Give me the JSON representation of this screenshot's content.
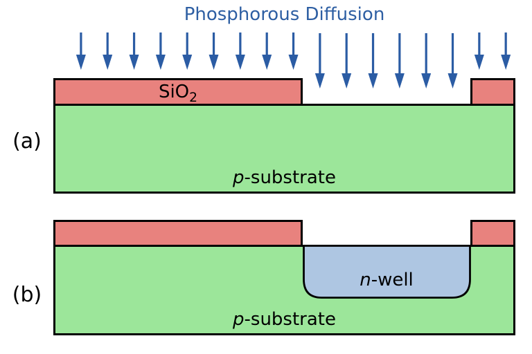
{
  "title": "Phosphorous Diffusion",
  "colors": {
    "title_text": "#2e5fa3",
    "arrow": "#2b5ca4",
    "oxide_fill": "#e8827e",
    "substrate_fill": "#9ce69a",
    "nwell_fill": "#aec6e2",
    "outline": "#000000"
  },
  "arrows": {
    "groups": [
      {
        "name": "over-left-oxide",
        "count": 9,
        "length": "short"
      },
      {
        "name": "over-window",
        "count": 6,
        "length": "long"
      },
      {
        "name": "over-right-oxide",
        "count": 2,
        "length": "short"
      }
    ]
  },
  "panel_a": {
    "label": "(a)",
    "oxide_label_base": "SiO",
    "oxide_label_sub": "2",
    "substrate_label_italic": "p",
    "substrate_label_rest": "-substrate"
  },
  "panel_b": {
    "label": "(b)",
    "nwell_label_italic": "n",
    "nwell_label_rest": "-well",
    "substrate_label_italic": "p",
    "substrate_label_rest": "-substrate"
  }
}
